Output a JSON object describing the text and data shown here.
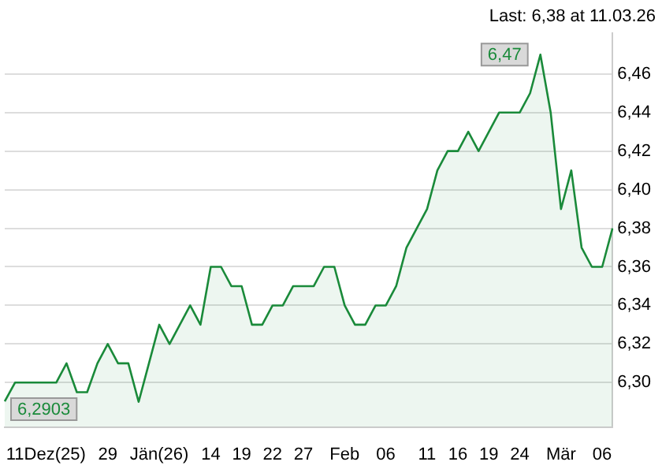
{
  "chart_data": {
    "type": "area",
    "title": "Last: 6,38 at 11.03.26",
    "categories": [
      null,
      null,
      null,
      null,
      "11Dez(25)",
      null,
      null,
      null,
      null,
      null,
      "29",
      null,
      null,
      null,
      null,
      "Jän(26)",
      null,
      null,
      null,
      null,
      "14",
      null,
      null,
      "19",
      null,
      null,
      "22",
      null,
      null,
      "27",
      null,
      null,
      null,
      "Feb",
      null,
      null,
      null,
      "06",
      null,
      null,
      null,
      "11",
      null,
      null,
      "16",
      null,
      null,
      "19",
      null,
      null,
      "24",
      null,
      null,
      null,
      "Mär",
      null,
      null,
      null,
      "06",
      null
    ],
    "series": [
      {
        "color": "#1a8a3a",
        "values": [
          6.2903,
          6.3,
          6.3,
          6.3,
          6.3,
          6.3,
          6.31,
          6.295,
          6.295,
          6.31,
          6.32,
          6.31,
          6.31,
          6.29,
          6.31,
          6.33,
          6.32,
          6.33,
          6.34,
          6.33,
          6.36,
          6.36,
          6.35,
          6.35,
          6.33,
          6.33,
          6.34,
          6.34,
          6.35,
          6.35,
          6.35,
          6.36,
          6.36,
          6.34,
          6.33,
          6.33,
          6.34,
          6.34,
          6.35,
          6.37,
          6.38,
          6.39,
          6.41,
          6.42,
          6.42,
          6.43,
          6.42,
          6.43,
          6.44,
          6.44,
          6.44,
          6.45,
          6.47,
          6.44,
          6.39,
          6.41,
          6.37,
          6.36,
          6.36,
          6.38
        ],
        "value_labels": [
          "6,2903",
          null,
          null,
          null,
          null,
          null,
          null,
          null,
          null,
          null,
          null,
          null,
          null,
          null,
          null,
          null,
          null,
          null,
          null,
          null,
          null,
          null,
          null,
          null,
          null,
          null,
          null,
          null,
          null,
          null,
          null,
          null,
          null,
          null,
          null,
          null,
          null,
          null,
          null,
          null,
          null,
          null,
          null,
          null,
          null,
          null,
          null,
          null,
          null,
          null,
          null,
          null,
          "6,47",
          null,
          null,
          null,
          null,
          null,
          null,
          null
        ]
      }
    ],
    "ylim": [
      6.277,
      6.481
    ],
    "yticks": [
      {
        "value": 6.3,
        "label": "6,30"
      },
      {
        "value": 6.32,
        "label": "6,32"
      },
      {
        "value": 6.34,
        "label": "6,34"
      },
      {
        "value": 6.36,
        "label": "6,36"
      },
      {
        "value": 6.38,
        "label": "6,38"
      },
      {
        "value": 6.4,
        "label": "6,40"
      },
      {
        "value": 6.42,
        "label": "6,42"
      },
      {
        "value": 6.44,
        "label": "6,44"
      },
      {
        "value": 6.46,
        "label": "6,46"
      }
    ],
    "grid": "y",
    "legend": false
  }
}
